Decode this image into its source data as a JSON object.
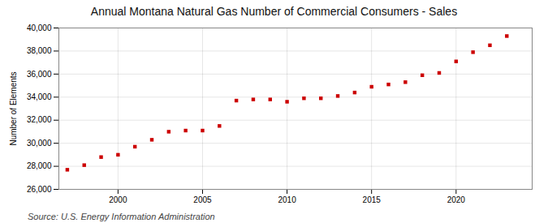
{
  "chart_data": {
    "type": "scatter",
    "title": "Annual Montana Natural Gas Number of Commercial Consumers - Sales",
    "ylabel": "Number of Elements",
    "source": "Source: U.S. Energy Information Administration",
    "x": [
      1997,
      1998,
      1999,
      2000,
      2001,
      2002,
      2003,
      2004,
      2005,
      2006,
      2007,
      2008,
      2009,
      2010,
      2011,
      2012,
      2013,
      2014,
      2015,
      2016,
      2017,
      2018,
      2019,
      2020,
      2021,
      2022,
      2023
    ],
    "values": [
      27700,
      28100,
      28800,
      29000,
      29700,
      30300,
      31000,
      31100,
      31100,
      31500,
      33700,
      33800,
      33800,
      33600,
      33900,
      33900,
      34100,
      34400,
      34900,
      35100,
      35300,
      35900,
      36100,
      37100,
      37900,
      38500,
      39300
    ],
    "color": "#cc0000",
    "marker": "square",
    "xlim": [
      1996.5,
      2024.5
    ],
    "xticks": [
      2000,
      2005,
      2010,
      2015,
      2020
    ],
    "ylim": [
      26000,
      40000
    ],
    "yticks": [
      {
        "value": 26000,
        "label": "26,000"
      },
      {
        "value": 28000,
        "label": "28,000"
      },
      {
        "value": 30000,
        "label": "30,000"
      },
      {
        "value": 32000,
        "label": "32,000"
      },
      {
        "value": 34000,
        "label": "34,000"
      },
      {
        "value": 36000,
        "label": "36,000"
      },
      {
        "value": 38000,
        "label": "38,000"
      },
      {
        "value": 40000,
        "label": "40,000"
      }
    ],
    "grid": true
  }
}
